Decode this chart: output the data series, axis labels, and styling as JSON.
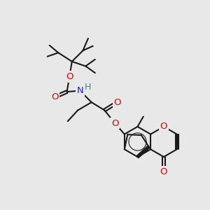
{
  "bg_color": "#e8e8e8",
  "bond_color": "#1a1a1a",
  "bond_width": 1.5,
  "atoms": {
    "O_red": "#dd0000",
    "N_blue": "#2222cc",
    "H_teal": "#448888",
    "C_black": "#1a1a1a"
  },
  "figsize": [
    3.0,
    3.0
  ],
  "dpi": 100,
  "xlim": [
    0,
    10
  ],
  "ylim": [
    0,
    10
  ]
}
